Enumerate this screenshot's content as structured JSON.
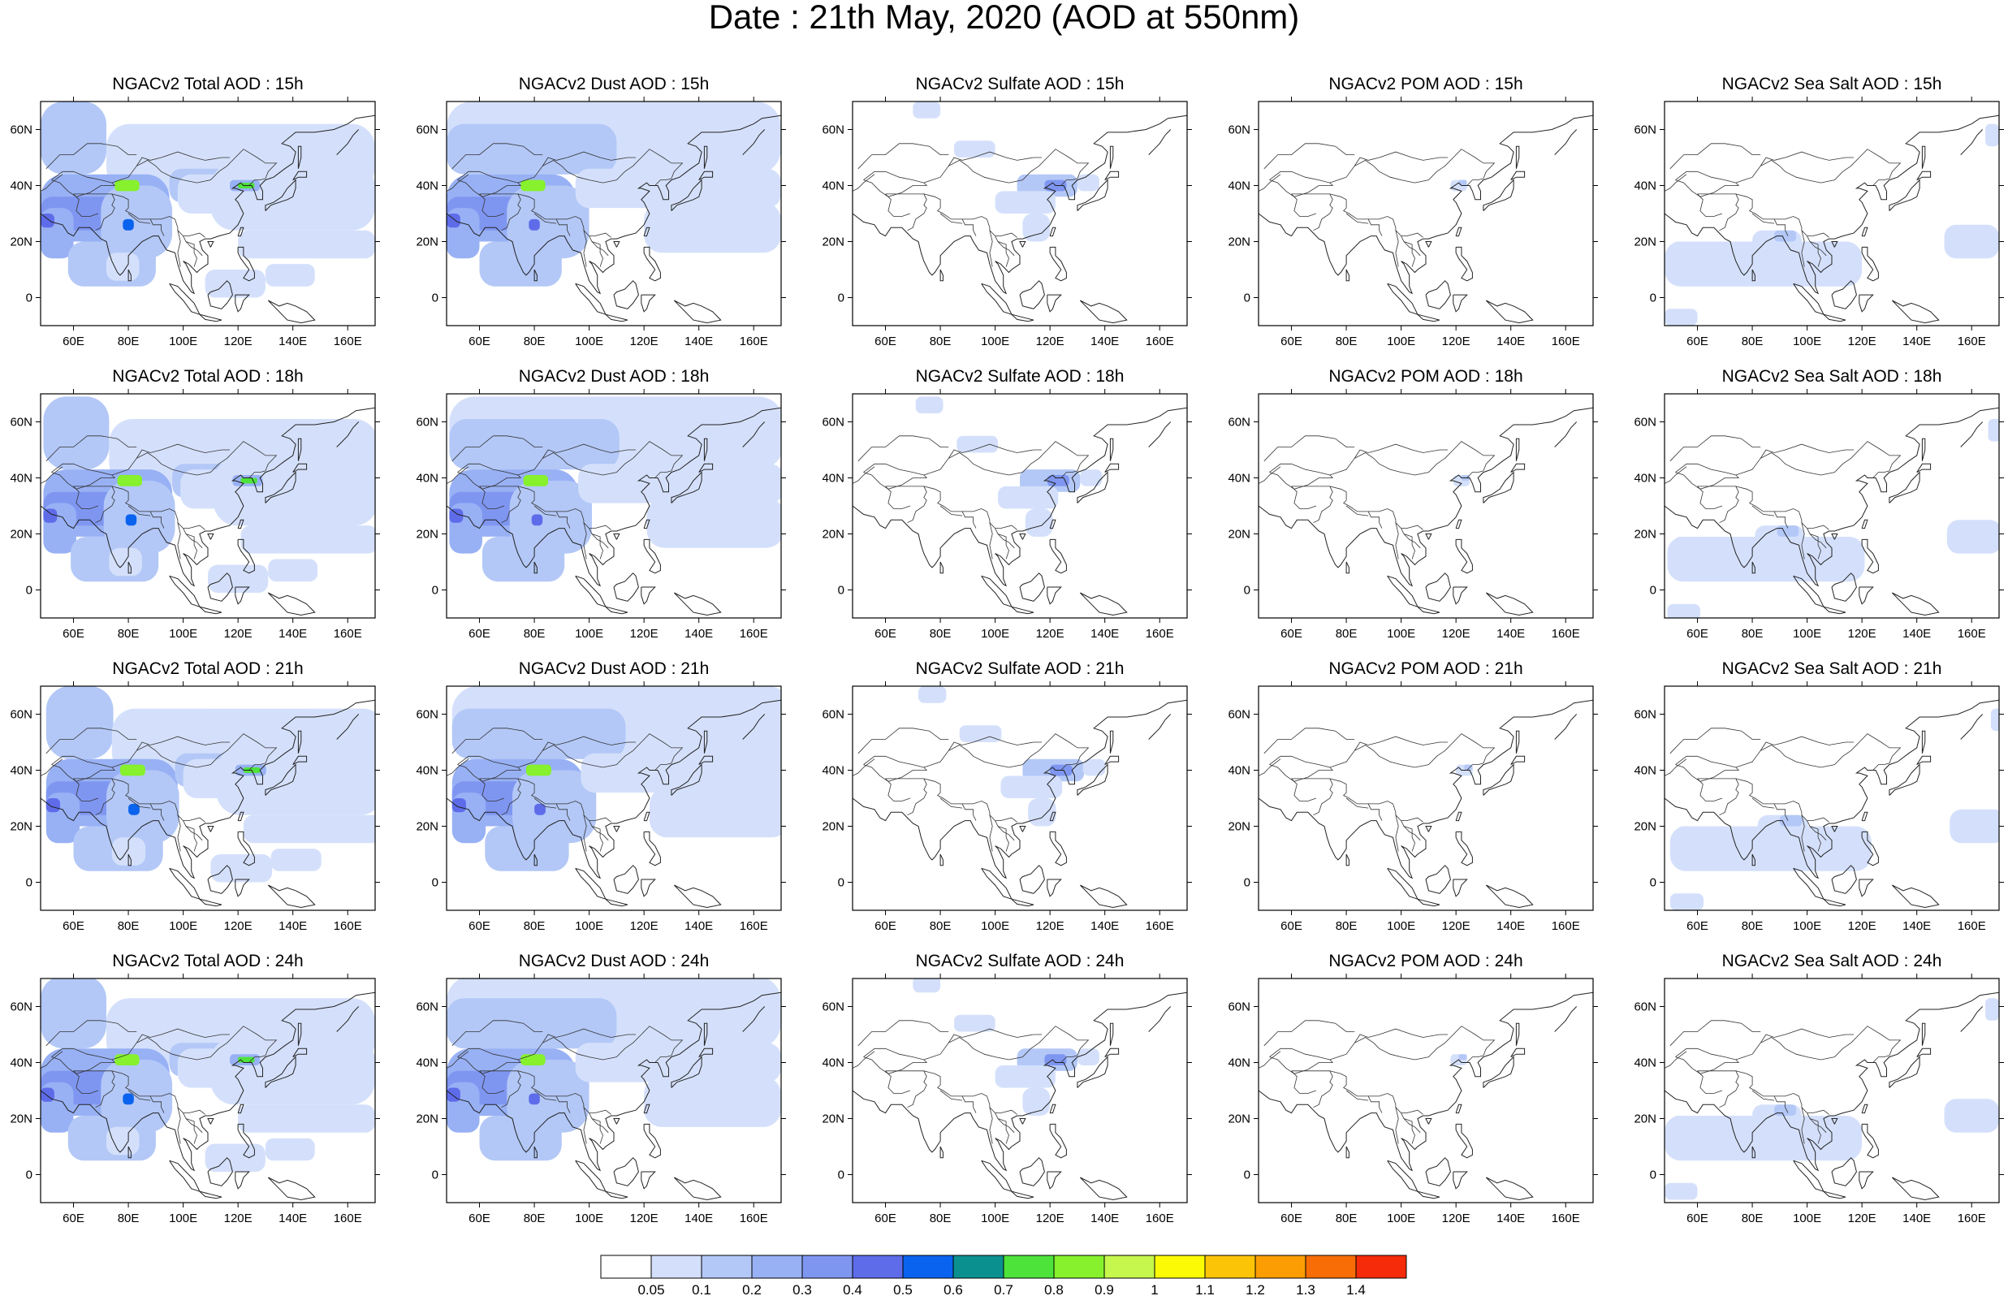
{
  "title": "Date : 21th May, 2020 (AOD at 550nm)",
  "panels": [
    [
      "NGACv2 Total AOD : 15h",
      "NGACv2 Dust AOD : 15h",
      "NGACv2 Sulfate AOD : 15h",
      "NGACv2 POM AOD : 15h",
      "NGACv2 Sea Salt AOD : 15h"
    ],
    [
      "NGACv2 Total AOD : 18h",
      "NGACv2 Dust AOD : 18h",
      "NGACv2 Sulfate AOD : 18h",
      "NGACv2 POM AOD : 18h",
      "NGACv2 Sea Salt AOD : 18h"
    ],
    [
      "NGACv2 Total AOD : 21h",
      "NGACv2 Dust AOD : 21h",
      "NGACv2 Sulfate AOD : 21h",
      "NGACv2 POM AOD : 21h",
      "NGACv2 Sea Salt AOD : 21h"
    ],
    [
      "NGACv2 Total AOD : 24h",
      "NGACv2 Dust AOD : 24h",
      "NGACv2 Sulfate AOD : 24h",
      "NGACv2 POM AOD : 24h",
      "NGACv2 Sea Salt  AOD : 24h"
    ]
  ],
  "lat_labels": [
    "60N",
    "40N",
    "20N",
    "0"
  ],
  "lon_labels": [
    "60E",
    "80E",
    "100E",
    "120E",
    "140E",
    "160E"
  ],
  "colorbar": {
    "labels": [
      "0.05",
      "0.1",
      "0.2",
      "0.3",
      "0.4",
      "0.5",
      "0.6",
      "0.7",
      "0.8",
      "0.9",
      "1",
      "1.1",
      "1.2",
      "1.3",
      "1.4"
    ],
    "colors": [
      "#ffffff",
      "#d4e0fb",
      "#b3c8f7",
      "#98b1f5",
      "#7f96f1",
      "#5e6cea",
      "#0a63ee",
      "#0b9090",
      "#4de33a",
      "#86f12c",
      "#c6f74c",
      "#fcfb05",
      "#fcc407",
      "#fb9d03",
      "#f86d06",
      "#f52b0a"
    ]
  }
}
